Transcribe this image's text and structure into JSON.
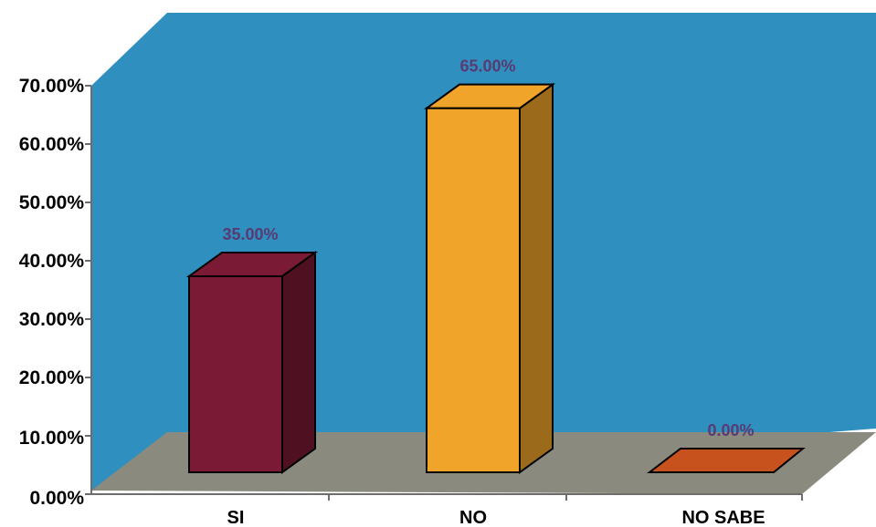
{
  "chart_data": {
    "type": "bar",
    "categories": [
      "SI",
      "NO",
      "NO SABE"
    ],
    "values": [
      35.0,
      65.0,
      0.0
    ],
    "data_labels": [
      "35.00%",
      "65.00%",
      "0.00%"
    ],
    "y_ticks": [
      "0.00%",
      "10.00%",
      "20.00%",
      "30.00%",
      "40.00%",
      "50.00%",
      "60.00%",
      "70.00%"
    ],
    "ylim": [
      0,
      70
    ],
    "grid": false,
    "legend": "none",
    "three_d": true,
    "colors": {
      "wall": "#2f8fbf",
      "floor": "#8a8a7e",
      "bars": [
        "#7a1a35",
        "#f0a42a",
        "#c8521e"
      ],
      "data_label": "#5a3a72"
    }
  }
}
